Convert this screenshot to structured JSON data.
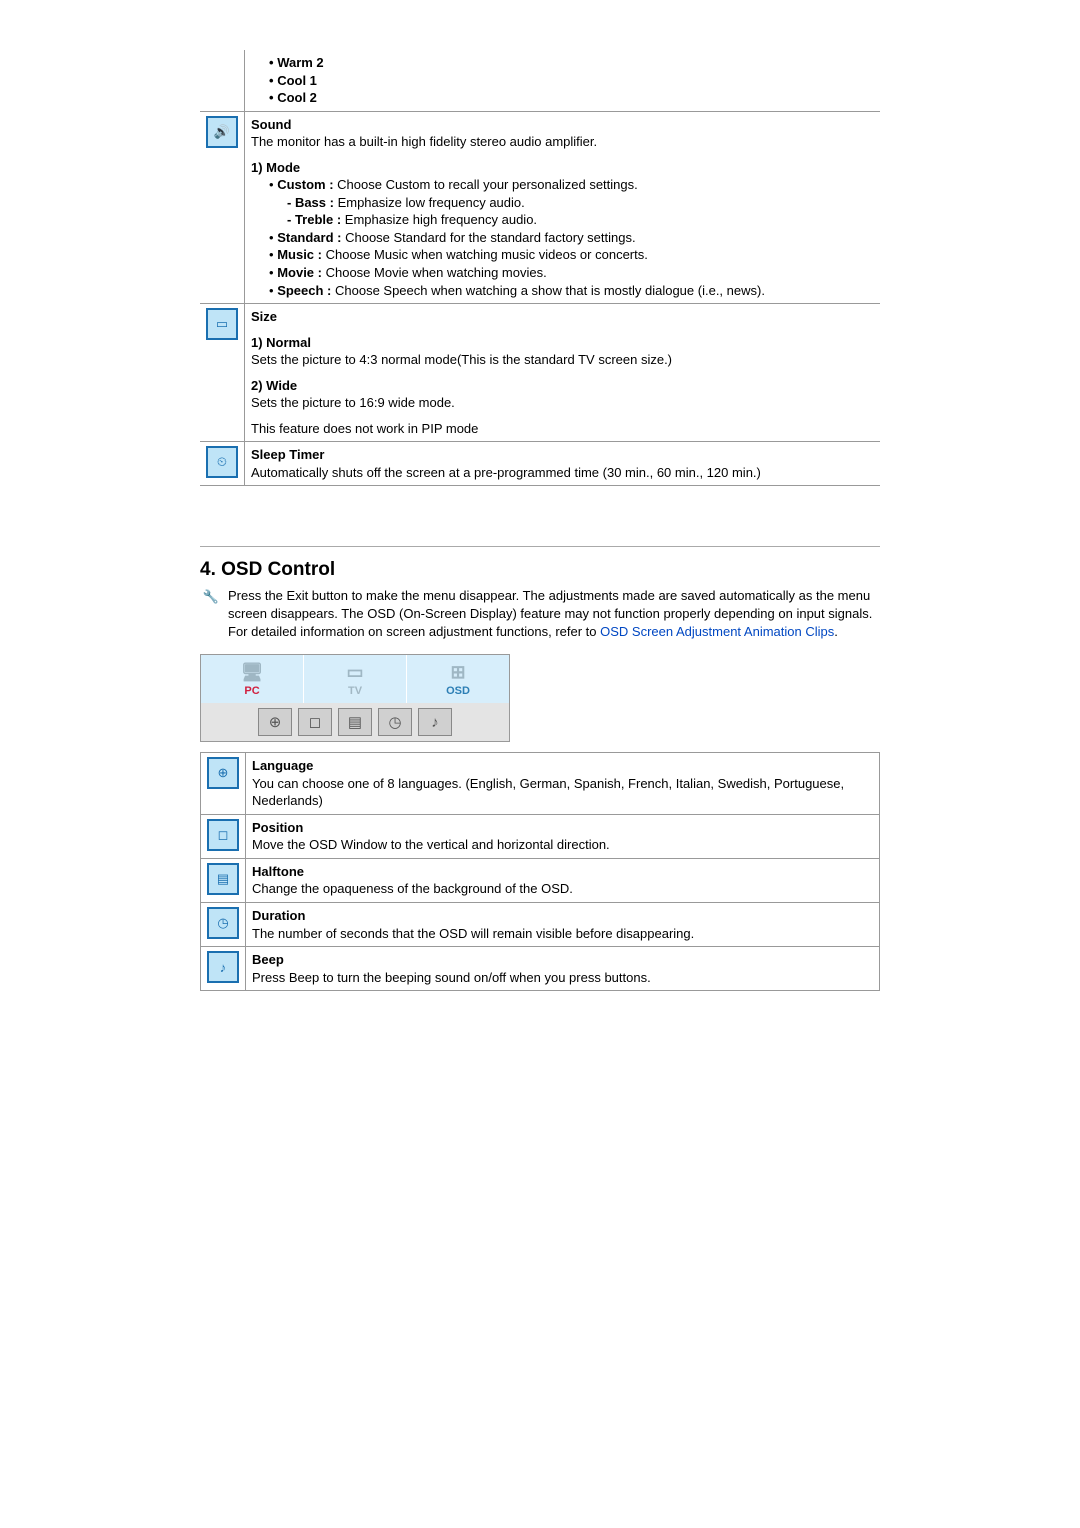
{
  "topTable": {
    "colorTone": {
      "items": [
        "Warm 2",
        "Cool 1",
        "Cool 2"
      ]
    },
    "sound": {
      "icon": "sound-icon",
      "title": "Sound",
      "desc": "The monitor has a built-in high fidelity stereo audio amplifier.",
      "modeLabel": "1) Mode",
      "modes": {
        "custom": {
          "label": "Custom :",
          "text": " Choose Custom to recall your personalized settings."
        },
        "bass": {
          "label": "- Bass :",
          "text": " Emphasize low frequency audio."
        },
        "treble": {
          "label": "- Treble :",
          "text": " Emphasize high frequency audio."
        },
        "standard": {
          "label": "Standard :",
          "text": " Choose Standard for the standard factory settings."
        },
        "music": {
          "label": "Music :",
          "text": " Choose Music when watching music videos or concerts."
        },
        "movie": {
          "label": "Movie :",
          "text": " Choose Movie when watching movies."
        },
        "speech": {
          "label": "Speech :",
          "text": " Choose Speech when watching a show that is mostly dialogue (i.e., news)."
        }
      }
    },
    "size": {
      "icon": "size-icon",
      "title": "Size",
      "normalLabel": "1) Normal",
      "normalText": "Sets the picture to 4:3 normal mode(This is the standard TV screen size.)",
      "wideLabel": "2) Wide",
      "wideText": "Sets the picture to 16:9 wide mode.",
      "note": "This feature does not work in PIP mode"
    },
    "sleep": {
      "icon": "sleep-timer-icon",
      "title": "Sleep Timer",
      "text": "Automatically shuts off the screen at a pre-programmed time (30 min., 60 min., 120 min.)"
    }
  },
  "section": {
    "heading": "4. OSD Control",
    "intro1": "Press the Exit button to make the menu disappear. The adjustments made are saved automatically as the menu screen disappears. The OSD (On-Screen Display) feature may not function properly depending on input signals.",
    "intro2a": "For detailed information on screen adjustment functions, refer to ",
    "link": "OSD Screen Adjustment Animation Clips",
    "intro2b": ".",
    "tabs": {
      "pc": "PC",
      "tv": "TV",
      "osd": "OSD"
    }
  },
  "osdTable": {
    "language": {
      "icon": "language-icon",
      "title": "Language",
      "text": "You can choose one of 8 languages. (English, German, Spanish, French, Italian, Swedish, Portuguese, Nederlands)"
    },
    "position": {
      "icon": "position-icon",
      "title": "Position",
      "text": "Move the OSD Window to the vertical and horizontal direction."
    },
    "halftone": {
      "icon": "halftone-icon",
      "title": "Halftone",
      "text": "Change the opaqueness of the background of the OSD."
    },
    "duration": {
      "icon": "duration-icon",
      "title": "Duration",
      "text": "The number of seconds that the OSD will remain visible before disappearing."
    },
    "beep": {
      "icon": "beep-icon",
      "title": "Beep",
      "text": "Press Beep to turn the beeping sound on/off when you press buttons."
    }
  },
  "bullets": {
    "dot": "•"
  },
  "glyphs": {
    "sound": "🔊",
    "size": "▭",
    "clock": "⏲",
    "wrench": "🔧",
    "globe": "⊕",
    "position": "◻",
    "halftone": "▤",
    "duration": "◷",
    "beep": "♪",
    "pc": "🖥",
    "tv": "▭",
    "osd": "⊞"
  }
}
